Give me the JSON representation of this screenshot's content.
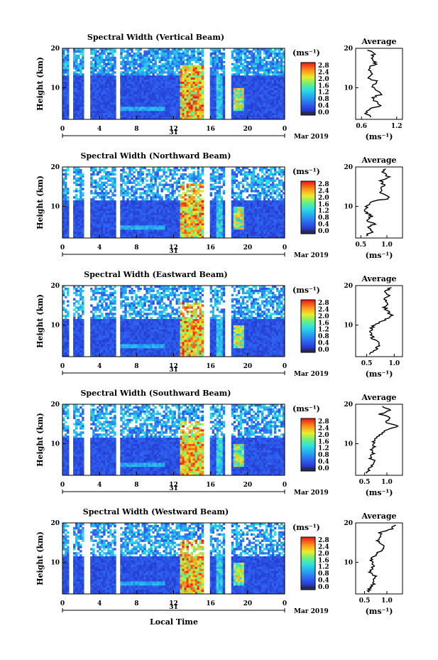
{
  "figure": {
    "xlabel": "Local Time",
    "date_label": "Mar 2019",
    "day_label": "31",
    "ylabel": "Height (km)",
    "cbar_unit": "(ms⁻¹)",
    "avg_title": "Average",
    "avg_xunit": "(ms⁻¹)"
  },
  "chart_data": [
    {
      "type": "heatmap",
      "title": "Spectral Width (Vertical Beam)",
      "x_ticks": [
        "0",
        "4",
        "8",
        "12",
        "16",
        "20",
        "0"
      ],
      "y_ticks": [
        "20",
        "10"
      ],
      "cbar_ticks": [
        "2.8",
        "2.4",
        "2.0",
        "1.6",
        "1.2",
        "0.8",
        "0.4",
        "0.0"
      ],
      "xlim": [
        0,
        24
      ],
      "ylim": [
        2,
        20
      ],
      "avg_ticks": [
        "0.6",
        "1.2"
      ],
      "avg_xlim": [
        0.5,
        1.3
      ],
      "avg_profile": [
        [
          0.75,
          2.5
        ],
        [
          0.68,
          3.5
        ],
        [
          0.72,
          4.5
        ],
        [
          0.92,
          5.5
        ],
        [
          0.85,
          6.5
        ],
        [
          0.78,
          7.5
        ],
        [
          0.95,
          8.5
        ],
        [
          0.82,
          9.5
        ],
        [
          0.76,
          10.5
        ],
        [
          0.88,
          11.5
        ],
        [
          0.72,
          12.5
        ],
        [
          0.8,
          13.5
        ],
        [
          0.7,
          14.5
        ],
        [
          0.78,
          15.5
        ],
        [
          0.86,
          16.5
        ],
        [
          0.74,
          17.5
        ],
        [
          0.82,
          18.5
        ],
        [
          0.7,
          19.5
        ]
      ]
    },
    {
      "type": "heatmap",
      "title": "Spectral Width (Northward Beam)",
      "x_ticks": [
        "0",
        "4",
        "8",
        "12",
        "16",
        "20",
        "0"
      ],
      "y_ticks": [
        "20",
        "10"
      ],
      "cbar_ticks": [
        "2.8",
        "2.4",
        "2.0",
        "1.6",
        "1.2",
        "0.8",
        "0.4",
        "0.0"
      ],
      "xlim": [
        0,
        24
      ],
      "ylim": [
        2,
        20
      ],
      "avg_ticks": [
        "0.5",
        "1.0"
      ],
      "avg_xlim": [
        0.4,
        1.3
      ],
      "avg_profile": [
        [
          0.6,
          2.5
        ],
        [
          0.7,
          3.5
        ],
        [
          0.65,
          4.5
        ],
        [
          0.75,
          5.5
        ],
        [
          0.62,
          6.5
        ],
        [
          0.7,
          7.5
        ],
        [
          0.6,
          8.5
        ],
        [
          0.58,
          9.5
        ],
        [
          0.65,
          10.5
        ],
        [
          0.78,
          11.5
        ],
        [
          1.05,
          12.0
        ],
        [
          0.9,
          13.5
        ],
        [
          0.85,
          14.5
        ],
        [
          0.95,
          15.5
        ],
        [
          0.88,
          16.5
        ],
        [
          1.02,
          17.5
        ],
        [
          0.92,
          18.5
        ],
        [
          0.98,
          19.5
        ]
      ]
    },
    {
      "type": "heatmap",
      "title": "Spectral Width (Eastward Beam)",
      "x_ticks": [
        "0",
        "4",
        "8",
        "12",
        "16",
        "20",
        "0"
      ],
      "y_ticks": [
        "20",
        "10"
      ],
      "cbar_ticks": [
        "2.8",
        "2.4",
        "2.0",
        "1.6",
        "1.2",
        "0.8",
        "0.4",
        "0.0"
      ],
      "xlim": [
        0,
        24
      ],
      "ylim": [
        2,
        20
      ],
      "avg_ticks": [
        "0.5",
        "1.0"
      ],
      "avg_xlim": [
        0.3,
        1.15
      ],
      "avg_profile": [
        [
          0.55,
          2.5
        ],
        [
          0.62,
          3.5
        ],
        [
          0.7,
          4.5
        ],
        [
          0.75,
          5.5
        ],
        [
          0.62,
          6.5
        ],
        [
          0.58,
          7.5
        ],
        [
          0.56,
          8.5
        ],
        [
          0.6,
          9.5
        ],
        [
          0.72,
          10.5
        ],
        [
          0.85,
          11.5
        ],
        [
          0.95,
          12.5
        ],
        [
          0.88,
          13.5
        ],
        [
          0.82,
          14.5
        ],
        [
          0.9,
          15.5
        ],
        [
          0.84,
          16.5
        ],
        [
          0.88,
          17.5
        ],
        [
          0.8,
          18.5
        ],
        [
          0.95,
          19.5
        ]
      ]
    },
    {
      "type": "heatmap",
      "title": "Spectral Width (Southward Beam)",
      "x_ticks": [
        "0",
        "4",
        "8",
        "12",
        "16",
        "20",
        "0"
      ],
      "y_ticks": [
        "20",
        "10"
      ],
      "cbar_ticks": [
        "2.8",
        "2.4",
        "2.0",
        "1.6",
        "1.2",
        "0.8",
        "0.4",
        "0.0"
      ],
      "xlim": [
        0,
        24
      ],
      "ylim": [
        2,
        20
      ],
      "avg_ticks": [
        "0.5",
        "1.0"
      ],
      "avg_xlim": [
        0.3,
        1.35
      ],
      "avg_profile": [
        [
          0.55,
          2.5
        ],
        [
          0.6,
          3.5
        ],
        [
          0.68,
          4.5
        ],
        [
          0.72,
          5.5
        ],
        [
          0.62,
          6.5
        ],
        [
          0.7,
          7.5
        ],
        [
          0.66,
          8.5
        ],
        [
          0.72,
          9.5
        ],
        [
          0.68,
          10.5
        ],
        [
          0.75,
          11.5
        ],
        [
          0.9,
          12.5
        ],
        [
          1.0,
          13.5
        ],
        [
          1.25,
          14.5
        ],
        [
          0.95,
          15.5
        ],
        [
          1.1,
          16.5
        ],
        [
          0.85,
          17.5
        ],
        [
          1.05,
          18.5
        ],
        [
          0.9,
          19.5
        ]
      ]
    },
    {
      "type": "heatmap",
      "title": "Spectral Width (Westward Beam)",
      "x_ticks": [
        "0",
        "4",
        "8",
        "12",
        "16",
        "20",
        "0"
      ],
      "y_ticks": [
        "20",
        "10"
      ],
      "cbar_ticks": [
        "2.8",
        "2.4",
        "2.0",
        "1.6",
        "1.2",
        "0.8",
        "0.4",
        "0.0"
      ],
      "xlim": [
        0,
        24
      ],
      "ylim": [
        2,
        20
      ],
      "avg_ticks": [
        "0.5",
        "1.0"
      ],
      "avg_xlim": [
        0.3,
        1.35
      ],
      "avg_profile": [
        [
          0.6,
          2.5
        ],
        [
          0.62,
          3.5
        ],
        [
          0.7,
          4.5
        ],
        [
          0.68,
          5.5
        ],
        [
          0.75,
          6.5
        ],
        [
          0.62,
          7.5
        ],
        [
          0.66,
          8.5
        ],
        [
          0.7,
          9.5
        ],
        [
          0.64,
          10.5
        ],
        [
          0.72,
          11.5
        ],
        [
          0.8,
          12.5
        ],
        [
          0.95,
          13.5
        ],
        [
          0.88,
          14.5
        ],
        [
          0.78,
          15.5
        ],
        [
          0.9,
          16.5
        ],
        [
          0.85,
          17.5
        ],
        [
          1.1,
          18.5
        ],
        [
          1.2,
          19.5
        ]
      ]
    }
  ]
}
